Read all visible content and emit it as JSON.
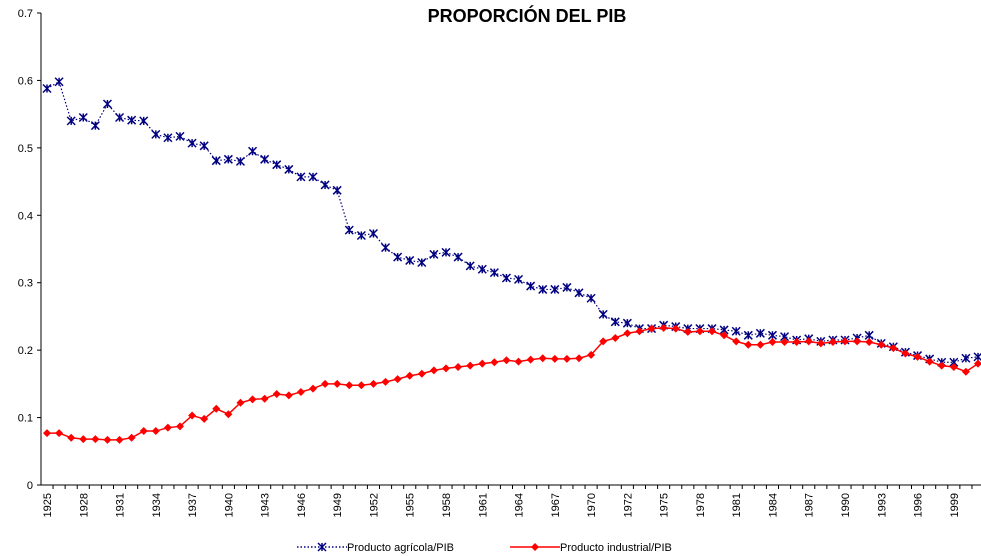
{
  "chart_data": {
    "type": "line",
    "title": "PROPORCIÓN DEL PIB",
    "categories": [
      "1925",
      null,
      null,
      "1928",
      null,
      null,
      "1931",
      null,
      null,
      "1934",
      null,
      null,
      "1937",
      null,
      null,
      "1940",
      null,
      null,
      "1943",
      null,
      null,
      "1946",
      null,
      null,
      "1949",
      null,
      null,
      "1952",
      null,
      null,
      "1955",
      null,
      null,
      "1958",
      null,
      null,
      "1961",
      null,
      null,
      "1964",
      null,
      null,
      "1967",
      null,
      null,
      "1970",
      null,
      null,
      "1972",
      null,
      null,
      "1975",
      null,
      null,
      "1978",
      null,
      null,
      "1981",
      null,
      null,
      "1984",
      null,
      null,
      "1987",
      null,
      null,
      "1990",
      null,
      null,
      "1993",
      null,
      null,
      "1996",
      null,
      null,
      "1999",
      null,
      null
    ],
    "series": [
      {
        "name": "Producto agrícola/PIB",
        "color": "#000080",
        "values": [
          0.588,
          0.598,
          0.54,
          0.545,
          0.533,
          0.565,
          0.545,
          0.541,
          0.54,
          0.52,
          0.515,
          0.517,
          0.507,
          0.503,
          0.481,
          0.483,
          0.48,
          0.495,
          0.483,
          0.475,
          0.468,
          0.457,
          0.457,
          0.445,
          0.437,
          0.378,
          0.37,
          0.373,
          0.352,
          0.338,
          0.333,
          0.33,
          0.342,
          0.345,
          0.338,
          0.325,
          0.32,
          0.315,
          0.307,
          0.305,
          0.295,
          0.29,
          0.29,
          0.293,
          0.285,
          0.277,
          0.253,
          0.242,
          0.24,
          0.232,
          0.232,
          0.237,
          0.235,
          0.232,
          0.232,
          0.232,
          0.23,
          0.228,
          0.222,
          0.225,
          0.222,
          0.22,
          0.215,
          0.217,
          0.213,
          0.215,
          0.215,
          0.218,
          0.222,
          0.21,
          0.205,
          0.197,
          0.192,
          0.187,
          0.182,
          0.182,
          0.188,
          0.19
        ]
      },
      {
        "name": "Producto industrial/PIB",
        "color": "#ff0000",
        "values": [
          0.077,
          0.077,
          0.07,
          0.068,
          0.068,
          0.067,
          0.067,
          0.07,
          0.08,
          0.08,
          0.085,
          0.087,
          0.103,
          0.098,
          0.113,
          0.105,
          0.122,
          0.127,
          0.128,
          0.135,
          0.133,
          0.138,
          0.143,
          0.15,
          0.15,
          0.148,
          0.148,
          0.15,
          0.153,
          0.157,
          0.162,
          0.165,
          0.17,
          0.173,
          0.175,
          0.177,
          0.18,
          0.182,
          0.185,
          0.183,
          0.186,
          0.188,
          0.187,
          0.187,
          0.188,
          0.193,
          0.213,
          0.218,
          0.225,
          0.228,
          0.232,
          0.233,
          0.232,
          0.227,
          0.228,
          0.228,
          0.222,
          0.213,
          0.208,
          0.208,
          0.212,
          0.212,
          0.212,
          0.213,
          0.21,
          0.212,
          0.213,
          0.213,
          0.212,
          0.208,
          0.203,
          0.195,
          0.19,
          0.183,
          0.177,
          0.175,
          0.168,
          0.18
        ]
      }
    ],
    "ylim": [
      0,
      0.7
    ],
    "yticks": [
      0,
      0.1,
      0.2,
      0.3,
      0.4,
      0.5,
      0.6,
      0.7
    ]
  }
}
